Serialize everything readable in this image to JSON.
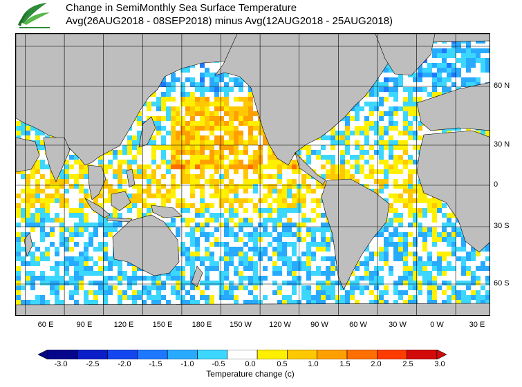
{
  "header": {
    "title_line1": "Change in SemiMonthly Sea Surface Temperature",
    "title_line2": "Avg(26AUG2018 - 08SEP2018) minus Avg(12AUG2018 - 25AUG2018)"
  },
  "map": {
    "longitude_labels": [
      "60 E",
      "90 E",
      "120 E",
      "150 E",
      "180 E",
      "150 W",
      "120 W",
      "90 W",
      "60 W",
      "30 W",
      "0 W",
      "30 E"
    ],
    "latitude_labels": [
      "60 N",
      "30 N",
      "0",
      "30 S",
      "60 S"
    ],
    "land_color": "#bebebe",
    "sea_ice_color": "#e6e6e6"
  },
  "legend": {
    "title": "Temperature change  (c)",
    "tick_labels": [
      "-3.0",
      "-2.5",
      "-2.0",
      "-1.5",
      "-1.0",
      "-0.5",
      "0.0",
      "0.5",
      "1.0",
      "1.5",
      "2.0",
      "2.5",
      "3.0"
    ],
    "colors": [
      "#06068a",
      "#0a1ec8",
      "#1446f0",
      "#1e78ff",
      "#28aaff",
      "#3cd7ff",
      "#ffffff",
      "#fff000",
      "#ffc800",
      "#ffa000",
      "#ff6e00",
      "#ff3c00",
      "#d20a0a"
    ]
  }
}
